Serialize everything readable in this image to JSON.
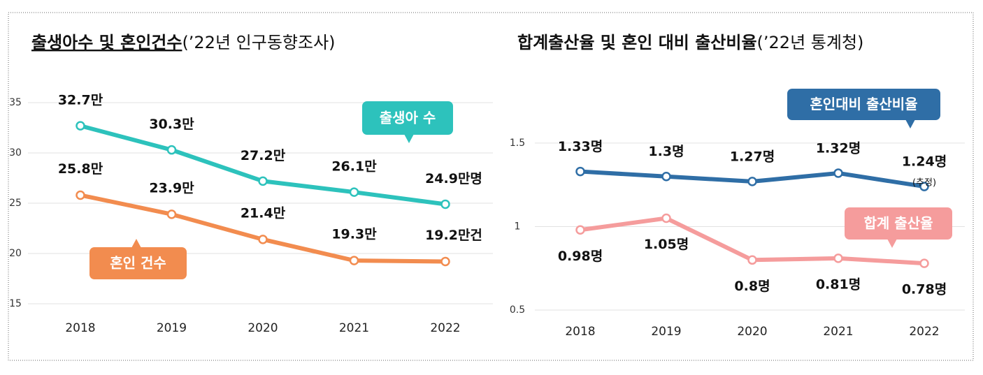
{
  "chart_data": [
    {
      "type": "line",
      "title": "출생아수 및 혼인건수",
      "subtitle": "(’22년 인구동향조사)",
      "categories": [
        "2018",
        "2019",
        "2020",
        "2021",
        "2022"
      ],
      "series": [
        {
          "name": "출생아 수",
          "color": "#2dc2bc",
          "values": [
            32.7,
            30.3,
            27.2,
            26.1,
            24.9
          ],
          "value_labels": [
            "32.7만",
            "30.3만",
            "27.2만",
            "26.1만",
            "24.9만명"
          ]
        },
        {
          "name": "혼인 건수",
          "color": "#f28c4f",
          "values": [
            25.8,
            23.9,
            21.4,
            19.3,
            19.2
          ],
          "value_labels": [
            "25.8만",
            "23.9만",
            "21.4만",
            "19.3만",
            "19.2만건"
          ]
        }
      ],
      "ylim": [
        14,
        36
      ],
      "yticks": [
        15,
        20,
        25,
        30,
        35
      ],
      "grid": true
    },
    {
      "type": "line",
      "title": "합계출산율 및 혼인 대비 출산비율",
      "subtitle": "(’22년 통계청)",
      "categories": [
        "2018",
        "2019",
        "2020",
        "2021",
        "2022"
      ],
      "series": [
        {
          "name": "혼인대비 출산비율",
          "color": "#2f6ea6",
          "values": [
            1.33,
            1.3,
            1.27,
            1.32,
            1.24
          ],
          "value_labels": [
            "1.33명",
            "1.3명",
            "1.27명",
            "1.32명",
            "1.24명"
          ]
        },
        {
          "name": "합계 출산율",
          "color": "#f59c9c",
          "values": [
            0.98,
            1.05,
            0.8,
            0.81,
            0.78
          ],
          "value_labels": [
            "0.98명",
            "1.05명",
            "0.8명",
            "0.81명",
            "0.78명"
          ]
        }
      ],
      "annotation": "(추정)",
      "estimate_color": "#2233bb",
      "ylim": [
        0.45,
        1.6
      ],
      "yticks": [
        0.5,
        1,
        1.5
      ],
      "grid": true
    }
  ]
}
